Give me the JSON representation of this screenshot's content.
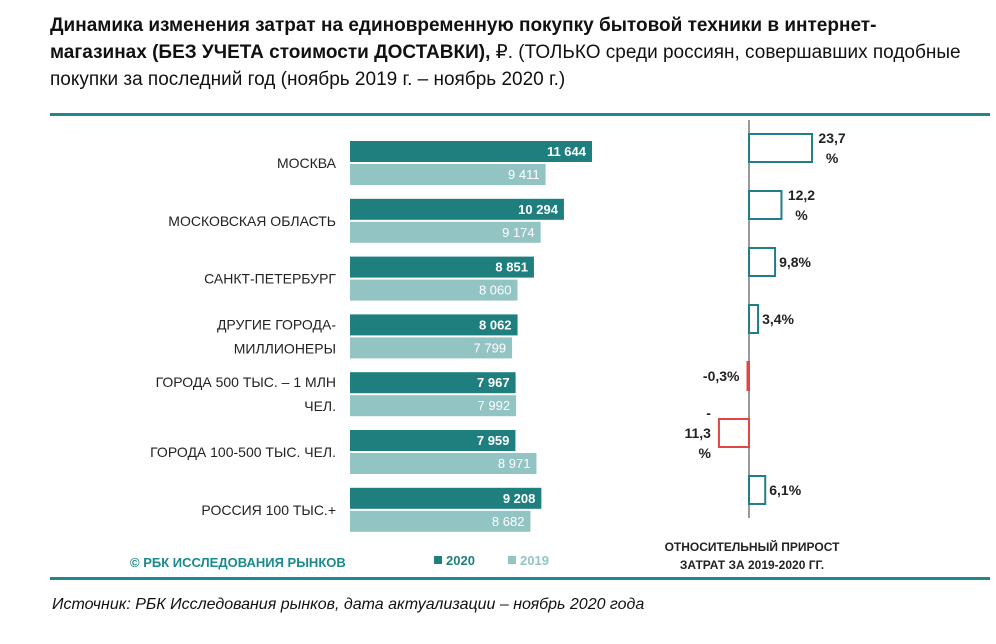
{
  "title": {
    "bold": "Динамика изменения затрат на единовременную покупку бытовой техники в интернет-магазинах (БЕЗ УЧЕТА стоимости ДОСТАВКИ),",
    "normal": " ₽. (ТОЛЬКО среди россиян, совершавших подобные покупки за последний год (ноябрь 2019 г. – ноябрь 2020 г.)"
  },
  "copyright": "© РБК ИССЛЕДОВАНИЯ РЫНКОВ",
  "footer": "Источник: РБК Исследования рынков, дата актуализации – ноябрь 2020 года",
  "colors": {
    "s2020": "#1f7e7e",
    "s2019": "#93c4c4",
    "pos": "#1f7e8a",
    "neg": "#e04646",
    "accent": "#1b8a8c"
  },
  "chart_data": [
    {
      "type": "bar",
      "orientation": "horizontal",
      "categories": [
        [
          "МОСКВА"
        ],
        [
          "МОСКОВСКАЯ ОБЛАСТЬ"
        ],
        [
          "САНКТ-ПЕТЕРБУРГ"
        ],
        [
          "ДРУГИЕ ГОРОДА-",
          "МИЛЛИОНЕРЫ"
        ],
        [
          "ГОРОДА 500 ТЫС. – 1 МЛН",
          "ЧЕЛ."
        ],
        [
          "ГОРОДА 100-500 ТЫС. ЧЕЛ."
        ],
        [
          "РОССИЯ 100 ТЫС.+"
        ]
      ],
      "series": [
        {
          "name": "2020",
          "values": [
            11644,
            10294,
            8851,
            8062,
            7967,
            7959,
            9208
          ],
          "labels": [
            "11 644",
            "10 294",
            "8 851",
            "8 062",
            "7 967",
            "7 959",
            "9 208"
          ]
        },
        {
          "name": "2019",
          "values": [
            9411,
            9174,
            8060,
            7799,
            7992,
            8971,
            8682
          ],
          "labels": [
            "9 411",
            "9 174",
            "8 060",
            "7 799",
            "7 992",
            "8 971",
            "8 682"
          ]
        }
      ],
      "legend": "bottom"
    },
    {
      "type": "bar",
      "orientation": "horizontal",
      "title": [
        "ОТНОСИТЕЛЬНЫЙ ПРИРОСТ",
        "ЗАТРАТ ЗА 2019-2020 ГГ."
      ],
      "values": [
        23.7,
        12.2,
        9.8,
        3.4,
        -0.3,
        -11.3,
        6.1
      ],
      "labels": [
        [
          "23,7",
          "%"
        ],
        [
          "12,2",
          "%"
        ],
        [
          "9,8%"
        ],
        [
          "3,4%"
        ],
        [
          "-0,3%"
        ],
        [
          "-",
          "11,3",
          "%"
        ],
        [
          "6,1%"
        ]
      ]
    }
  ]
}
